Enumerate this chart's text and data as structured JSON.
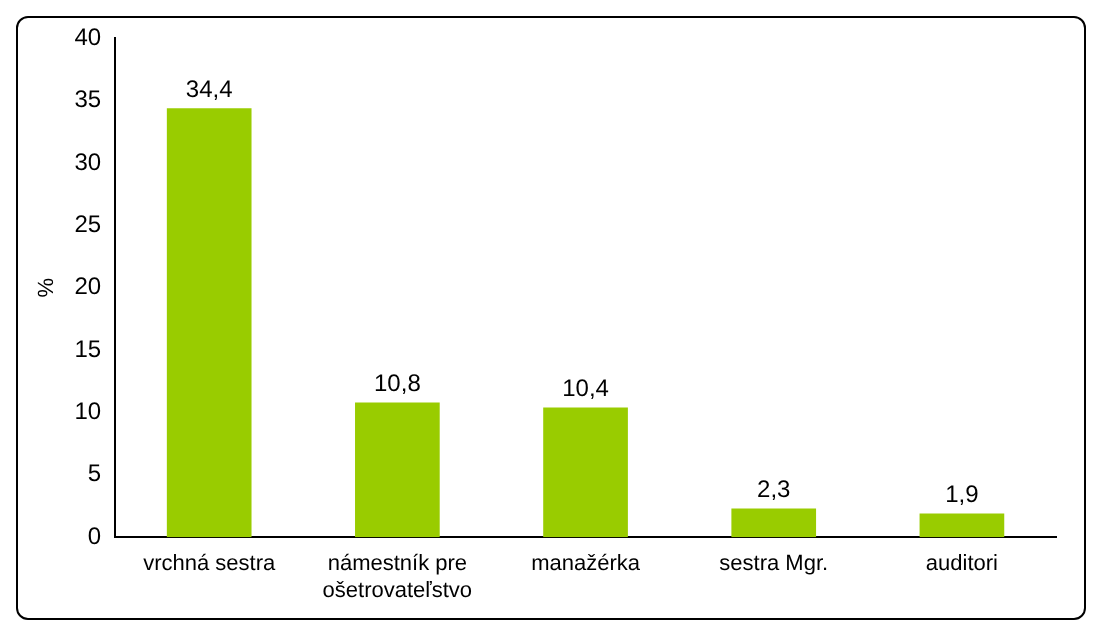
{
  "chart_data": {
    "type": "bar",
    "ylabel": "%",
    "categories": [
      "vrchná sestra",
      "námestník pre ošetrovateľstvo",
      "manažérka",
      "sestra Mgr.",
      "auditori"
    ],
    "values": [
      34.4,
      10.8,
      10.4,
      2.3,
      1.9
    ],
    "value_labels": [
      "34,4",
      "10,8",
      "10,4",
      "2,3",
      "1,9"
    ],
    "color": "#99cc00",
    "ylim": [
      0,
      40
    ],
    "yticks": [
      0,
      5,
      10,
      15,
      20,
      25,
      30,
      35,
      40
    ],
    "grid": false,
    "legend": false
  }
}
